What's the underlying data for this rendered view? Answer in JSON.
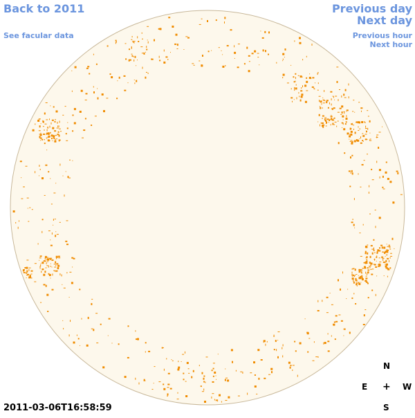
{
  "nav": {
    "back": "Back to 2011",
    "facular": "See facular data",
    "previous_day": "Previous day",
    "next_day": "Next day",
    "previous_hour": "Previous hour",
    "next_hour": "Next hour"
  },
  "timestamp": "2011-03-06T16:58:59",
  "compass": {
    "north": "N",
    "east": "E",
    "center": "+",
    "west": "W",
    "south": "S"
  },
  "colors": {
    "disk_fill": "#fdf8ec",
    "disk_edge": "#c8b89a",
    "plage": "#f08c00",
    "link": "#6b95de"
  }
}
